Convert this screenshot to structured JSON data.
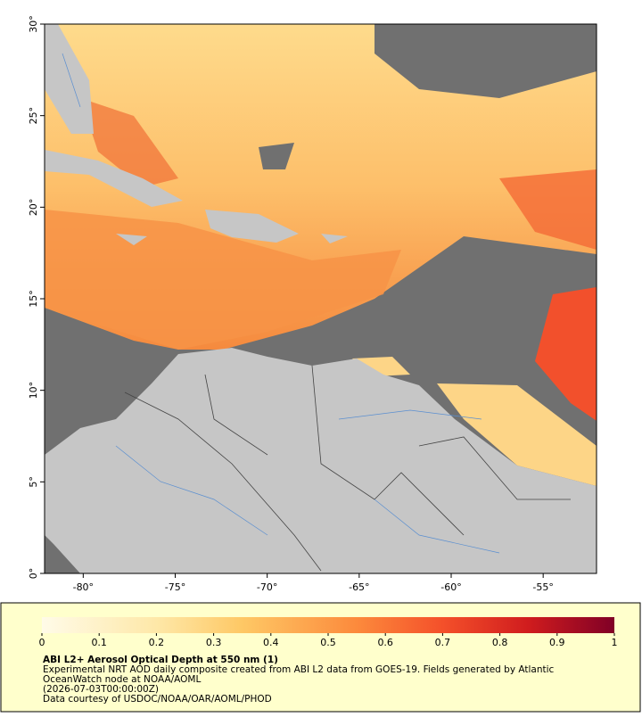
{
  "map": {
    "xlim": [
      -82.1,
      -52.1
    ],
    "ylim": [
      0,
      30
    ],
    "xticks": [
      {
        "value": -80,
        "label": "-80°"
      },
      {
        "value": -75,
        "label": "-75°"
      },
      {
        "value": -70,
        "label": "-70°"
      },
      {
        "value": -65,
        "label": "-65°"
      },
      {
        "value": -60,
        "label": "-60°"
      },
      {
        "value": -55,
        "label": "-55°"
      }
    ],
    "yticks": [
      {
        "value": 0,
        "label": "0°"
      },
      {
        "value": 5,
        "label": "5°"
      },
      {
        "value": 10,
        "label": "10°"
      },
      {
        "value": 15,
        "label": "15°"
      },
      {
        "value": 20,
        "label": "20°"
      },
      {
        "value": 25,
        "label": "25°"
      },
      {
        "value": 30,
        "label": "30°"
      }
    ]
  },
  "colorbar": {
    "range": [
      0,
      1
    ],
    "ticks": [
      0,
      0.1,
      0.2,
      0.3,
      0.4,
      0.5,
      0.6,
      0.7,
      0.8,
      0.9,
      1
    ]
  },
  "caption": {
    "title": "ABI L2+ Aerosol Optical Depth at 550 nm (1)",
    "lines": [
      "Experimental NRT AOD daily composite created from ABI L2 data from GOES-19. Fields generated by Atlantic",
      "OceanWatch node at NOAA/AOML",
      "(2026-07-03T00:00:00Z)",
      "Data courtesy of USDOC/NOAA/OAR/AOML/PHOD"
    ]
  }
}
